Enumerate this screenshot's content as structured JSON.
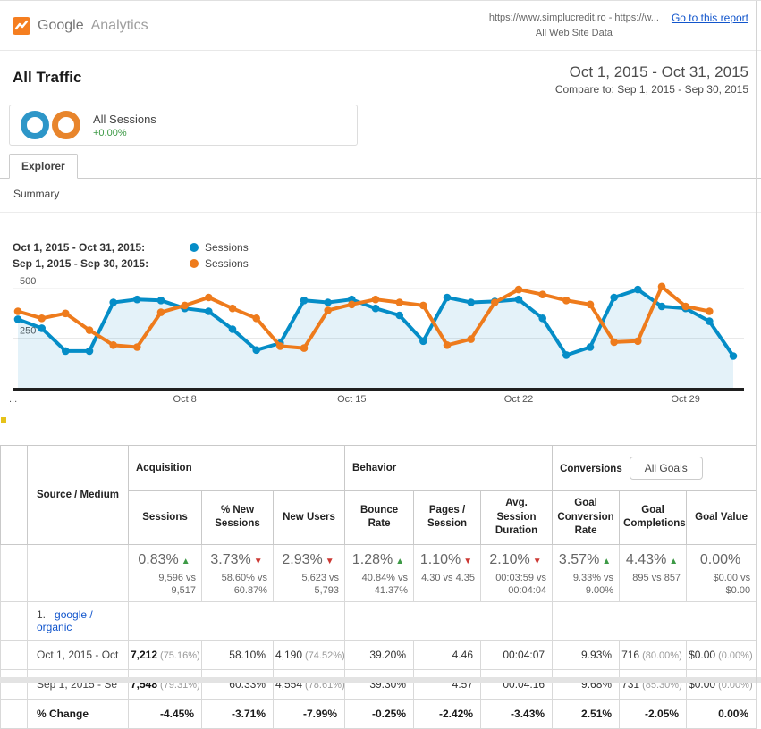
{
  "header": {
    "logo_brand": "Google",
    "logo_product": "Analytics",
    "property_line1": "https://www.simplucredit.ro - https://w...",
    "property_line2": "All Web Site Data",
    "report_link": "Go to this report"
  },
  "report": {
    "title": "All Traffic",
    "date_range": "Oct 1, 2015 - Oct 31, 2015",
    "compare_to": "Compare to: Sep 1, 2015 - Sep 30, 2015"
  },
  "segment": {
    "name": "All Sessions",
    "delta": "+0.00%"
  },
  "tabs": {
    "explorer": "Explorer"
  },
  "subtabs": {
    "summary": "Summary"
  },
  "colors": {
    "current_series": "#058dc7",
    "previous_series": "#ee7b1c",
    "positive": "#3d9a46",
    "negative": "#cc3732",
    "link": "#1155cc"
  },
  "legend": [
    {
      "label": "Oct 1, 2015 - Oct 31, 2015:",
      "series": "Sessions",
      "color": "#058dc7"
    },
    {
      "label": "Sep 1, 2015 - Sep 30, 2015:",
      "series": "Sessions",
      "color": "#ee7b1c"
    }
  ],
  "chart_data": {
    "type": "line",
    "ylim": [
      0,
      560
    ],
    "y_ticks": [
      250,
      500
    ],
    "grid": true,
    "legend_position": "top-left",
    "x_axis_labels": [
      {
        "text": "...",
        "day": 1
      },
      {
        "text": "Oct 8",
        "day": 8
      },
      {
        "text": "Oct 15",
        "day": 15
      },
      {
        "text": "Oct 22",
        "day": 22
      },
      {
        "text": "Oct 29",
        "day": 29
      }
    ],
    "series": [
      {
        "name": "Sessions (Oct 1, 2015 - Oct 31, 2015)",
        "color": "#058dc7",
        "fill": true,
        "values": [
          345,
          300,
          185,
          185,
          430,
          445,
          440,
          400,
          385,
          295,
          190,
          225,
          440,
          430,
          445,
          400,
          365,
          235,
          455,
          430,
          435,
          445,
          350,
          165,
          205,
          455,
          495,
          410,
          400,
          335,
          160
        ]
      },
      {
        "name": "Sessions (Sep 1, 2015 - Sep 30, 2015)",
        "color": "#ee7b1c",
        "fill": false,
        "values": [
          385,
          350,
          375,
          290,
          215,
          205,
          380,
          415,
          455,
          400,
          350,
          210,
          200,
          390,
          420,
          445,
          430,
          415,
          215,
          245,
          430,
          495,
          470,
          440,
          420,
          230,
          235,
          510,
          410,
          385
        ]
      }
    ]
  },
  "table": {
    "dimension_header": "Source / Medium",
    "groups": [
      {
        "label": "Acquisition"
      },
      {
        "label": "Behavior"
      },
      {
        "label": "Conversions",
        "selector": "All Goals"
      }
    ],
    "columns": [
      "Sessions",
      "% New Sessions",
      "New Users",
      "Bounce Rate",
      "Pages / Session",
      "Avg. Session Duration",
      "Goal Conversion Rate",
      "Goal Completions",
      "Goal Value"
    ],
    "summary": [
      {
        "pct": "0.83%",
        "dir": "up",
        "sub": "9,596 vs 9,517"
      },
      {
        "pct": "3.73%",
        "dir": "down",
        "sub": "58.60% vs 60.87%"
      },
      {
        "pct": "2.93%",
        "dir": "down",
        "sub": "5,623 vs 5,793"
      },
      {
        "pct": "1.28%",
        "dir": "up",
        "sub": "40.84% vs 41.37%"
      },
      {
        "pct": "1.10%",
        "dir": "down",
        "sub": "4.30 vs 4.35"
      },
      {
        "pct": "2.10%",
        "dir": "down",
        "sub": "00:03:59 vs 00:04:04"
      },
      {
        "pct": "3.57%",
        "dir": "up",
        "sub": "9.33% vs 9.00%"
      },
      {
        "pct": "4.43%",
        "dir": "up",
        "sub": "895 vs 857"
      },
      {
        "pct": "0.00%",
        "dir": "none",
        "sub": "$0.00 vs $0.00"
      }
    ],
    "rows": [
      {
        "index": "1.",
        "dimension": "google / organic",
        "subrows": [
          {
            "label": "Oct 1, 2015 - Oct",
            "bold": false,
            "values": [
              [
                "7,212",
                "(75.16%)"
              ],
              [
                "58.10%"
              ],
              [
                "4,190",
                "(74.52%)"
              ],
              [
                "39.20%"
              ],
              [
                "4.46"
              ],
              [
                "00:04:07"
              ],
              [
                "9.93%"
              ],
              [
                "716",
                "(80.00%)"
              ],
              [
                "$0.00",
                "(0.00%)"
              ]
            ]
          },
          {
            "label": "Sep 1, 2015 - Se",
            "bold": false,
            "values": [
              [
                "7,548",
                "(79.31%)"
              ],
              [
                "60.33%"
              ],
              [
                "4,554",
                "(78.61%)"
              ],
              [
                "39.30%"
              ],
              [
                "4.57"
              ],
              [
                "00:04:16"
              ],
              [
                "9.68%"
              ],
              [
                "731",
                "(85.30%)"
              ],
              [
                "$0.00",
                "(0.00%)"
              ]
            ]
          },
          {
            "label": "% Change",
            "bold": true,
            "values": [
              [
                "-4.45%"
              ],
              [
                "-3.71%"
              ],
              [
                "-7.99%"
              ],
              [
                "-0.25%"
              ],
              [
                "-2.42%"
              ],
              [
                "-3.43%"
              ],
              [
                "2.51%"
              ],
              [
                "-2.05%"
              ],
              [
                "0.00%"
              ]
            ]
          }
        ]
      }
    ]
  }
}
